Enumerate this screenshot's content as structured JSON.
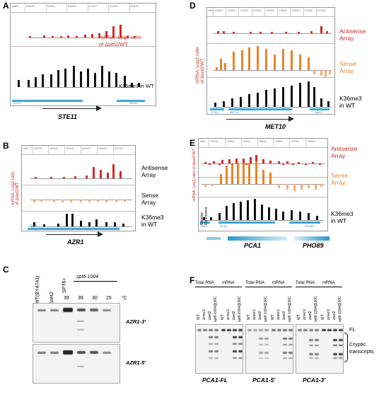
{
  "panels": {
    "A": {
      "label": "A",
      "chr": "chr12",
      "red_label_1": "mRNA: Log2 ratio",
      "red_label_2": "of ∆set2/WT",
      "black_label": "K36me3 in WT",
      "gene": "STE11",
      "coords": [
        "608000",
        "609000",
        "610000",
        "611000",
        "612000",
        "613000"
      ],
      "genes": [
        "STE11",
        "NHO4"
      ]
    },
    "B": {
      "label": "B",
      "chr": "chr7",
      "rot_label_1": "mRNA: Log2 ratio",
      "rot_label_2": "of ∆set2/WT",
      "antisense_1": "Antisense",
      "antisense_2": "Array",
      "sense_1": "Sense",
      "sense_2": "Array",
      "black_1": "K36me3",
      "black_2": "in WT",
      "gene": "AZR1",
      "coords": [
        "842000",
        "843000",
        "844000",
        "845000",
        "846000",
        "847000"
      ],
      "genes": [
        "AZR1"
      ]
    },
    "C": {
      "label": "C",
      "lanes": [
        "WT(BY4741)",
        "∆set2",
        "SPT6+",
        "spt6-1004"
      ],
      "temps": [
        "39",
        "39",
        "30",
        "25"
      ],
      "unit": "°C",
      "blot1": "AZR1-3'",
      "blot2": "AZR1-5'"
    },
    "D": {
      "label": "D",
      "chr": "chr4",
      "rot_label_1": "mRNA: Log2 ratio",
      "rot_label_2": "of ∆set2/WT",
      "antisense_1": "Antisense",
      "antisense_2": "Array",
      "sense_1": "Sense",
      "sense_2": "Array",
      "black_1": "K36me3",
      "black_2": "in WT",
      "gene": "MET10",
      "coords": [
        "213000",
        "213500",
        "214000",
        "214500",
        "215000",
        "215500",
        "216000",
        "216500",
        "217000"
      ],
      "genes": [
        "PTK2",
        "MET10",
        "SMC2"
      ]
    },
    "E": {
      "label": "E",
      "chr": "chr2",
      "rot_label": "mRNA: Log2 ratio of ∆set2/WT",
      "antisense_1": "Antisense",
      "antisense_2": "Array",
      "sense_1": "Sense",
      "sense_2": "Array",
      "black_1": "K36me3",
      "black_2": "in WT",
      "rel_1": "Relative",
      "rel_2": "Enrichment",
      "coords": [
        "792000",
        "793000",
        "794000",
        "795000",
        "796000",
        "797000",
        "798000"
      ],
      "genes": [
        "SUL1",
        "PCA1",
        "PHO89"
      ],
      "gene1": "PCA1",
      "gene2": "PHO89"
    },
    "F": {
      "label": "F",
      "total": "Total RNA",
      "mrna": "mRNA",
      "lanes": [
        "WT",
        "∆mec1",
        "∆set2",
        "spt6-1004@30C"
      ],
      "fl": "FL",
      "cryptic_1": "Cryptic",
      "cryptic_2": "transcripts",
      "blots": [
        "PCA1-FL",
        "PCA1-5'",
        "PCA1-3'"
      ]
    }
  }
}
